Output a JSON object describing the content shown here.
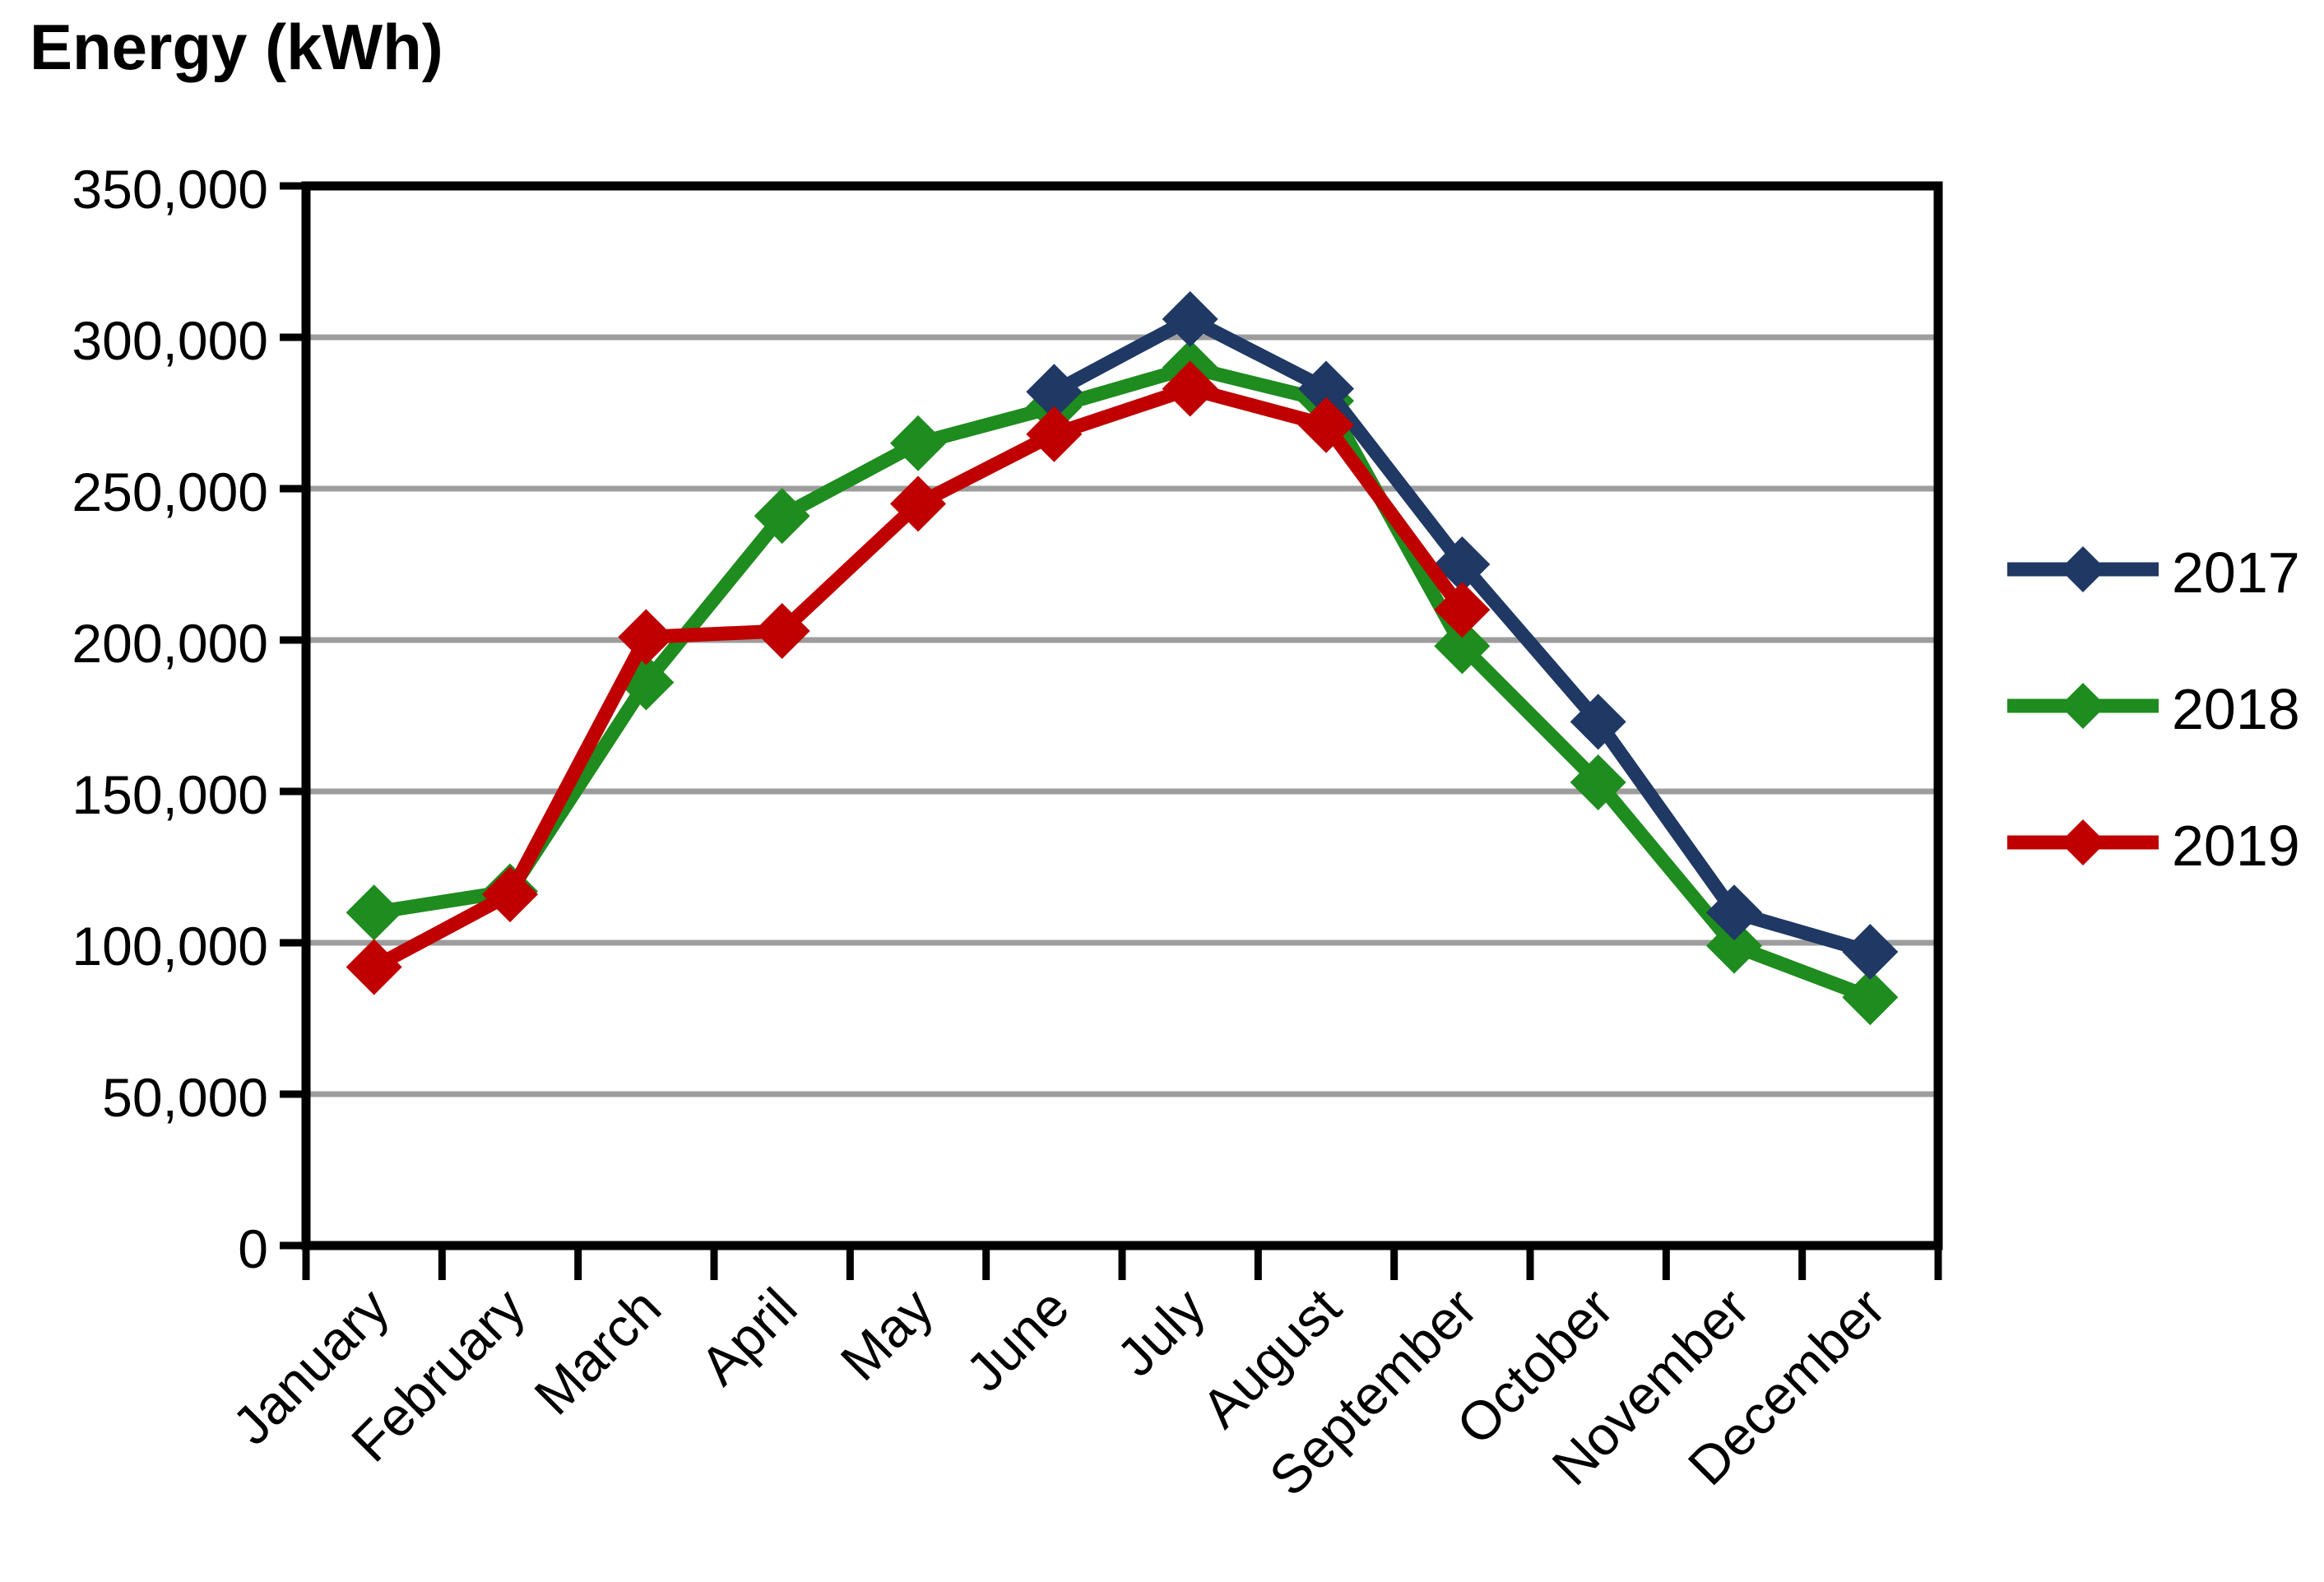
{
  "title": "Energy (kWh)",
  "chart_data": {
    "type": "line",
    "title": "Energy (kWh)",
    "categories": [
      "January",
      "February",
      "March",
      "April",
      "May",
      "June",
      "July",
      "August",
      "September",
      "October",
      "November",
      "December"
    ],
    "series": [
      {
        "name": "2017",
        "color": "#1F3864",
        "values": [
          null,
          null,
          null,
          null,
          null,
          282000,
          306000,
          283000,
          225000,
          173000,
          110000,
          97000
        ]
      },
      {
        "name": "2018",
        "color": "#1E8C1E",
        "values": [
          110000,
          117000,
          186000,
          241000,
          265000,
          277000,
          290000,
          279000,
          198000,
          153000,
          99000,
          82000
        ]
      },
      {
        "name": "2019",
        "color": "#C00000",
        "values": [
          92000,
          116000,
          201000,
          203000,
          245000,
          268000,
          283000,
          271000,
          210000,
          null,
          null,
          null
        ]
      }
    ],
    "xlabel": "",
    "ylabel": "Energy (kWh)",
    "ylim": [
      0,
      350000
    ],
    "y_tick_step": 50000,
    "y_tick_labels": [
      "0",
      "50,000",
      "100,000",
      "150,000",
      "200,000",
      "250,000",
      "300,000",
      "350,000"
    ],
    "grid": true,
    "gridline_color": "#9D9D9D",
    "axis_color": "#000000",
    "marker": "diamond",
    "legend_position": "right",
    "x_label_rotation": -45
  },
  "legend": {
    "items": [
      {
        "label": "2017"
      },
      {
        "label": "2018"
      },
      {
        "label": "2019"
      }
    ]
  }
}
